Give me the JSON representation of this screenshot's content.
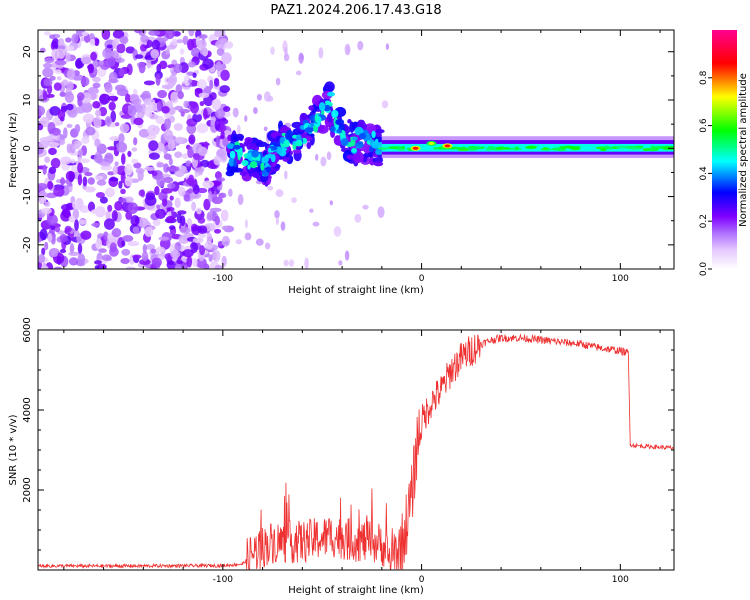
{
  "title": "PAZ1.2024.206.17.43.G18",
  "chart_data": [
    {
      "type": "heatmap",
      "xlabel": "Height of straight line (km)",
      "ylabel": "Frequency (Hz)",
      "xlim": [
        -193,
        127
      ],
      "ylim": [
        -25,
        24.5
      ],
      "xticks": [
        -100,
        0,
        100
      ],
      "xtick_labels": [
        "-100",
        "0",
        "100"
      ],
      "yticks": [
        -20,
        -10,
        0,
        10,
        20
      ],
      "ytick_labels": [
        "-20",
        "-10",
        "0",
        "10",
        "20"
      ],
      "colorbar": {
        "label": "Normalized spectral amplitude",
        "range": [
          0,
          1
        ],
        "ticks": [
          0,
          0.2,
          0.4,
          0.6,
          0.8
        ],
        "tick_labels": [
          "0.0",
          "0.2",
          "0.4",
          "0.6",
          "0.8"
        ],
        "colormap": [
          "#ffffff",
          "#e6c8ff",
          "#b070ff",
          "#8000ff",
          "#0000ff",
          "#00ffff",
          "#00ff00",
          "#ffff00",
          "#ff0000",
          "#ff0090"
        ]
      },
      "regions": [
        {
          "x": [
            -193,
            -97
          ],
          "freq": [
            -25,
            24.5
          ],
          "amplitude": 0.15
        },
        {
          "x": [
            -97,
            -20
          ],
          "freq": [
            -6,
            12
          ],
          "amplitude": 0.4
        },
        {
          "x": [
            -20,
            127
          ],
          "freq": [
            -1,
            1.5
          ],
          "amplitude": 0.5
        }
      ],
      "peaks": [
        {
          "x": -3,
          "f": 0,
          "amplitude": 0.85
        },
        {
          "x": 5,
          "f": 1,
          "amplitude": 0.7
        },
        {
          "x": 13,
          "f": 0.5,
          "amplitude": 0.85
        }
      ]
    },
    {
      "type": "line",
      "xlabel": "Height of straight line (km)",
      "ylabel": "SNR (10 * v/v)",
      "xlim": [
        -193,
        127
      ],
      "ylim": [
        0,
        6000
      ],
      "xticks": [
        -100,
        0,
        100
      ],
      "xtick_labels": [
        "-100",
        "0",
        "100"
      ],
      "yticks": [
        2000,
        4000,
        6000
      ],
      "ytick_labels": [
        "2000",
        "4000",
        "6000"
      ],
      "color": "#ee3030",
      "series": [
        {
          "x": [
            -193,
            -150,
            -100,
            -90,
            -83,
            -75,
            -60,
            -45,
            -35,
            -25,
            -20,
            -15,
            -10,
            -5,
            -2,
            0,
            5,
            10,
            15,
            20,
            25,
            30,
            35,
            40,
            50,
            60,
            70,
            80,
            90,
            100,
            104,
            105,
            106,
            110,
            120,
            127
          ],
          "y": [
            100,
            100,
            110,
            150,
            500,
            700,
            700,
            850,
            750,
            700,
            650,
            200,
            600,
            1800,
            3300,
            3700,
            4200,
            4500,
            5000,
            5300,
            5500,
            5650,
            5750,
            5800,
            5800,
            5750,
            5700,
            5650,
            5550,
            5480,
            5420,
            3150,
            3120,
            3100,
            3070,
            3050
          ]
        }
      ]
    }
  ]
}
